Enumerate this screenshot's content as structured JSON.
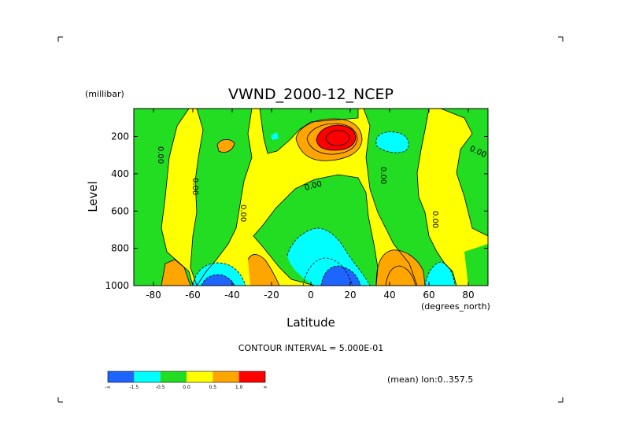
{
  "chart_data": {
    "type": "heatmap",
    "title": "VWND_2000-12_NCEP",
    "unit_label": "(millibar)",
    "ylabel": "Level",
    "xlabel": "Latitude",
    "x_unit_label": "(degrees_north)",
    "x_ticks": [
      -80,
      -60,
      -40,
      -20,
      0,
      20,
      40,
      60,
      80
    ],
    "x_tick_labels": [
      "-80",
      "-60",
      "-40",
      "-20",
      "0",
      "20",
      "40",
      "60",
      "80"
    ],
    "y_ticks": [
      200,
      400,
      600,
      800,
      1000
    ],
    "y_tick_labels": [
      "200",
      "400",
      "600",
      "800",
      "1000"
    ],
    "xlim": [
      -90,
      90
    ],
    "ylim": [
      1000,
      50
    ],
    "y_inverted": true,
    "contour_interval_text": "CONTOUR INTERVAL = 5.000E-01",
    "zero_contour_labels": [
      "0.00",
      "0.00",
      "0.00",
      "0.00",
      "0.00",
      "0.00",
      "0.00"
    ],
    "legend": {
      "colors": [
        "#1e64ff",
        "#00ffff",
        "#22dd22",
        "#ffff00",
        "#ffa500",
        "#ff0000"
      ],
      "level_labels": [
        "-∞",
        "-1.5",
        "-0.5",
        "0.0",
        "0.5",
        "1.0",
        "∞"
      ]
    },
    "colors": {
      "strong_negative": "#1e64ff",
      "negative": "#00ffff",
      "near_zero_negative": "#22dd22",
      "near_zero_positive": "#ffff00",
      "positive": "#ffa500",
      "strong_positive": "#ff0000"
    }
  },
  "footer": {
    "mean_text": "(mean) lon:0..357.5"
  }
}
